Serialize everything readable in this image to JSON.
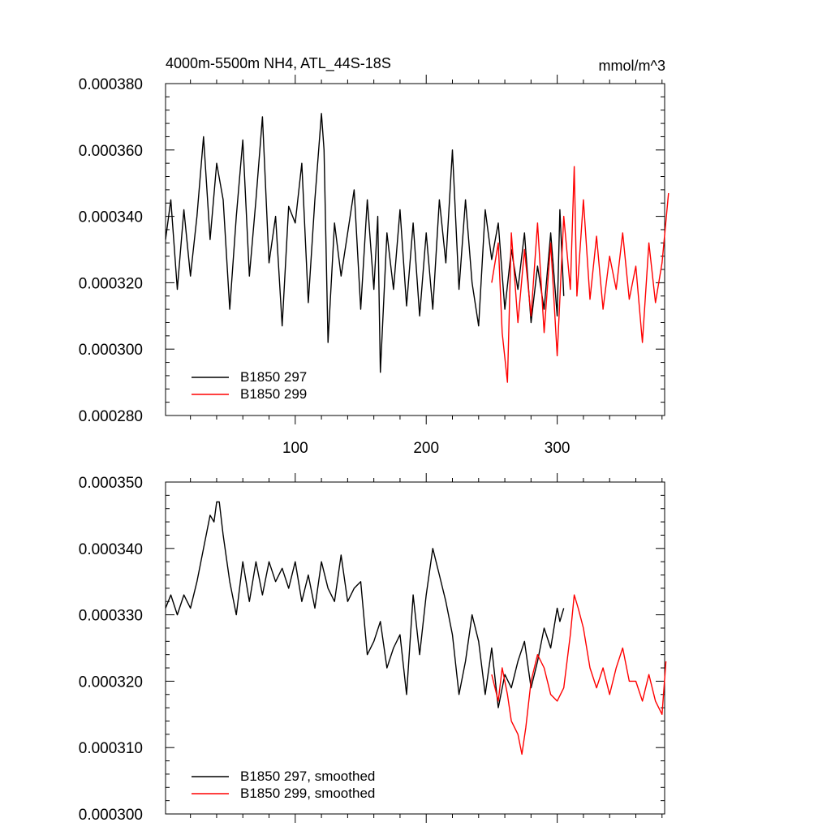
{
  "chart_data": [
    {
      "type": "line",
      "title": "4000m-5500m NH4, ATL_44S-18S",
      "units": "mmol/m^3",
      "xlim": [
        1,
        382
      ],
      "ylim": [
        0.00028,
        0.00038
      ],
      "x_ticks": [
        100,
        200,
        300
      ],
      "x_tick_labels": [
        "100",
        "200",
        "300"
      ],
      "y_ticks": [
        0.00028,
        0.0003,
        0.00032,
        0.00034,
        0.00036,
        0.00038
      ],
      "y_tick_labels": [
        "0.000280",
        "0.000300",
        "0.000320",
        "0.000340",
        "0.000360",
        "0.000380"
      ],
      "legend_position": "bottom-left",
      "grid": false,
      "series": [
        {
          "name": "B1850 297",
          "color": "#000000",
          "x": [
            1,
            5,
            10,
            15,
            20,
            25,
            30,
            35,
            40,
            45,
            50,
            55,
            60,
            65,
            70,
            75,
            80,
            85,
            90,
            95,
            100,
            105,
            110,
            115,
            120,
            122,
            125,
            130,
            135,
            140,
            145,
            150,
            155,
            160,
            163,
            165,
            170,
            175,
            180,
            185,
            190,
            195,
            200,
            205,
            210,
            215,
            220,
            225,
            230,
            235,
            240,
            245,
            250,
            255,
            260,
            265,
            270,
            275,
            280,
            285,
            290,
            295,
            300,
            302,
            305
          ],
          "values": [
            0.000333,
            0.000345,
            0.000318,
            0.000342,
            0.000322,
            0.00034,
            0.000364,
            0.000333,
            0.000356,
            0.000345,
            0.000312,
            0.00034,
            0.000363,
            0.000322,
            0.000345,
            0.00037,
            0.000326,
            0.00034,
            0.000307,
            0.000343,
            0.000338,
            0.000356,
            0.000314,
            0.000345,
            0.000371,
            0.00036,
            0.000302,
            0.000338,
            0.000322,
            0.000335,
            0.000348,
            0.000312,
            0.000345,
            0.000318,
            0.00034,
            0.000293,
            0.000335,
            0.000318,
            0.000342,
            0.000313,
            0.000338,
            0.00031,
            0.000335,
            0.000312,
            0.000345,
            0.000326,
            0.00036,
            0.000318,
            0.000345,
            0.00032,
            0.000307,
            0.000342,
            0.000327,
            0.000338,
            0.000312,
            0.00033,
            0.000318,
            0.000335,
            0.000308,
            0.000325,
            0.000312,
            0.000335,
            0.00031,
            0.000342,
            0.000316
          ]
        },
        {
          "name": "B1850 299",
          "color": "#ff0000",
          "x": [
            250,
            255,
            258,
            262,
            265,
            270,
            275,
            280,
            285,
            290,
            295,
            300,
            305,
            310,
            313,
            315,
            320,
            325,
            330,
            335,
            340,
            345,
            350,
            355,
            360,
            365,
            370,
            375,
            380,
            385
          ],
          "values": [
            0.00032,
            0.000332,
            0.000305,
            0.00029,
            0.000335,
            0.000308,
            0.00033,
            0.00031,
            0.000338,
            0.000305,
            0.000332,
            0.000298,
            0.00034,
            0.000318,
            0.000355,
            0.000316,
            0.000345,
            0.000315,
            0.000334,
            0.000312,
            0.000328,
            0.000318,
            0.000335,
            0.000315,
            0.000325,
            0.000302,
            0.000332,
            0.000314,
            0.000326,
            0.000347
          ]
        }
      ]
    },
    {
      "type": "line",
      "xlim": [
        1,
        382
      ],
      "ylim": [
        0.0003,
        0.00035
      ],
      "x_ticks": [
        100,
        200,
        300
      ],
      "y_ticks": [
        0.0003,
        0.00031,
        0.00032,
        0.00033,
        0.00034,
        0.00035
      ],
      "y_tick_labels": [
        "0.000300",
        "0.000310",
        "0.000320",
        "0.000330",
        "0.000340",
        "0.000350"
      ],
      "legend_position": "bottom-left",
      "grid": false,
      "series": [
        {
          "name": "B1850 297, smoothed",
          "color": "#000000",
          "x": [
            1,
            5,
            10,
            15,
            20,
            25,
            30,
            35,
            38,
            40,
            42,
            45,
            50,
            55,
            60,
            65,
            70,
            75,
            80,
            85,
            90,
            95,
            100,
            105,
            110,
            115,
            120,
            125,
            130,
            135,
            140,
            145,
            150,
            155,
            160,
            165,
            170,
            175,
            180,
            185,
            190,
            195,
            200,
            205,
            210,
            215,
            220,
            225,
            230,
            235,
            240,
            245,
            250,
            255,
            260,
            265,
            270,
            275,
            280,
            285,
            290,
            295,
            300,
            302,
            305
          ],
          "values": [
            0.000331,
            0.000333,
            0.00033,
            0.000333,
            0.000331,
            0.000335,
            0.00034,
            0.000345,
            0.000344,
            0.000347,
            0.000347,
            0.000342,
            0.000335,
            0.00033,
            0.000338,
            0.000332,
            0.000338,
            0.000333,
            0.000338,
            0.000335,
            0.000337,
            0.000334,
            0.000338,
            0.000332,
            0.000336,
            0.000331,
            0.000338,
            0.000334,
            0.000332,
            0.000339,
            0.000332,
            0.000334,
            0.000335,
            0.000324,
            0.000326,
            0.000329,
            0.000322,
            0.000325,
            0.000327,
            0.000318,
            0.000333,
            0.000324,
            0.000333,
            0.00034,
            0.000336,
            0.000332,
            0.000327,
            0.000318,
            0.000323,
            0.00033,
            0.000326,
            0.000318,
            0.000325,
            0.000316,
            0.000321,
            0.000319,
            0.000323,
            0.000326,
            0.000319,
            0.000323,
            0.000328,
            0.000325,
            0.000331,
            0.000329,
            0.000331
          ]
        },
        {
          "name": "B1850 299, smoothed",
          "color": "#ff0000",
          "x": [
            250,
            255,
            258,
            262,
            265,
            270,
            273,
            276,
            280,
            285,
            290,
            295,
            300,
            305,
            310,
            313,
            316,
            320,
            325,
            330,
            335,
            340,
            345,
            350,
            355,
            360,
            365,
            370,
            375,
            380,
            383
          ],
          "values": [
            0.000321,
            0.000317,
            0.000322,
            0.000318,
            0.000314,
            0.000312,
            0.000309,
            0.000313,
            0.00032,
            0.000324,
            0.000322,
            0.000318,
            0.000317,
            0.000319,
            0.000327,
            0.000333,
            0.000331,
            0.000328,
            0.000322,
            0.000319,
            0.000322,
            0.000318,
            0.000322,
            0.000325,
            0.00032,
            0.00032,
            0.000317,
            0.000321,
            0.000317,
            0.000315,
            0.000323
          ]
        }
      ]
    }
  ]
}
